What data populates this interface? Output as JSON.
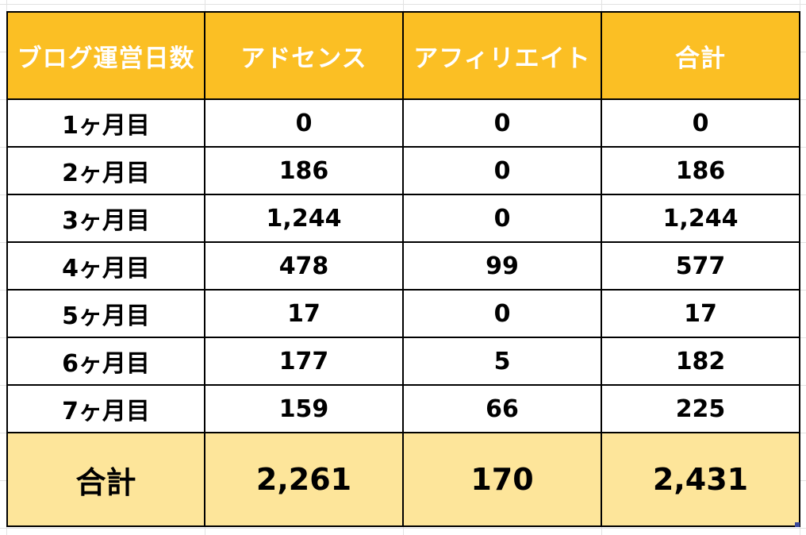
{
  "table": {
    "headers": [
      "ブログ運営日数",
      "アドセンス",
      "アフィリエイト",
      "合計"
    ],
    "rows": [
      [
        "1ヶ月目",
        "0",
        "0",
        "0"
      ],
      [
        "2ヶ月目",
        "186",
        "0",
        "186"
      ],
      [
        "3ヶ月目",
        "1,244",
        "0",
        "1,244"
      ],
      [
        "4ヶ月目",
        "478",
        "99",
        "577"
      ],
      [
        "5ヶ月目",
        "17",
        "0",
        "17"
      ],
      [
        "6ヶ月目",
        "177",
        "5",
        "182"
      ],
      [
        "7ヶ月目",
        "159",
        "66",
        "225"
      ]
    ],
    "total": [
      "合計",
      "2,261",
      "170",
      "2,431"
    ]
  },
  "colors": {
    "header_bg": "#fbbf24",
    "header_text": "#ffffff",
    "total_bg": "#fde59a",
    "border": "#000000"
  }
}
